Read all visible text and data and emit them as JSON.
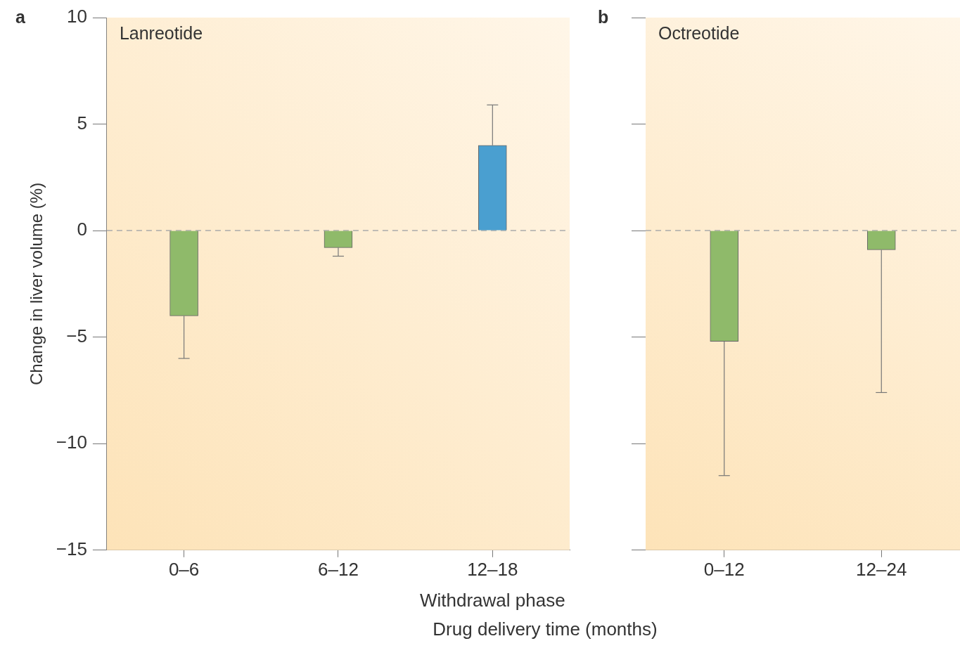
{
  "chart_data": [
    {
      "type": "bar",
      "title": "Lanreotide",
      "ylabel": "Change in liver volume (%)",
      "xlabel": "Drug delivery time (months)",
      "categories": [
        "0–6",
        "6–12",
        "12–18"
      ],
      "values": [
        -4,
        -0.8,
        4
      ],
      "colors": [
        "#8fba6a",
        "#8fba6a",
        "#4a9fd0"
      ],
      "errors": [
        [
          -6,
          -4
        ],
        [
          -1.2,
          -0.8
        ],
        [
          4,
          5.9
        ]
      ],
      "ylim": [
        -15,
        10
      ],
      "yticks": [
        -15,
        -10,
        -5,
        0,
        5,
        10
      ],
      "legend": false,
      "ref_lines": [
        {
          "axis": "y",
          "value": 0,
          "color": "#aaaaaa",
          "line_style": "dashed"
        }
      ],
      "annotations": [
        "a",
        "Withdrawal phase"
      ]
    },
    {
      "type": "bar",
      "title": "Octreotide",
      "categories": [
        "0–12",
        "12–24"
      ],
      "values": [
        -5.2,
        -0.9
      ],
      "colors": [
        "#8fba6a",
        "#8fba6a"
      ],
      "errors": [
        [
          -11.5,
          -5.2
        ],
        [
          -7.6,
          -0.9
        ]
      ],
      "ylim": [
        -15,
        10
      ],
      "yticks": [
        -15,
        -10,
        -5,
        0,
        5,
        10
      ],
      "legend": false,
      "tick_labels": "x",
      "ref_lines": [
        {
          "axis": "y",
          "value": 0,
          "color": "#aaaaaa",
          "line_style": "dashed"
        }
      ],
      "annotations": [
        "b"
      ]
    }
  ]
}
